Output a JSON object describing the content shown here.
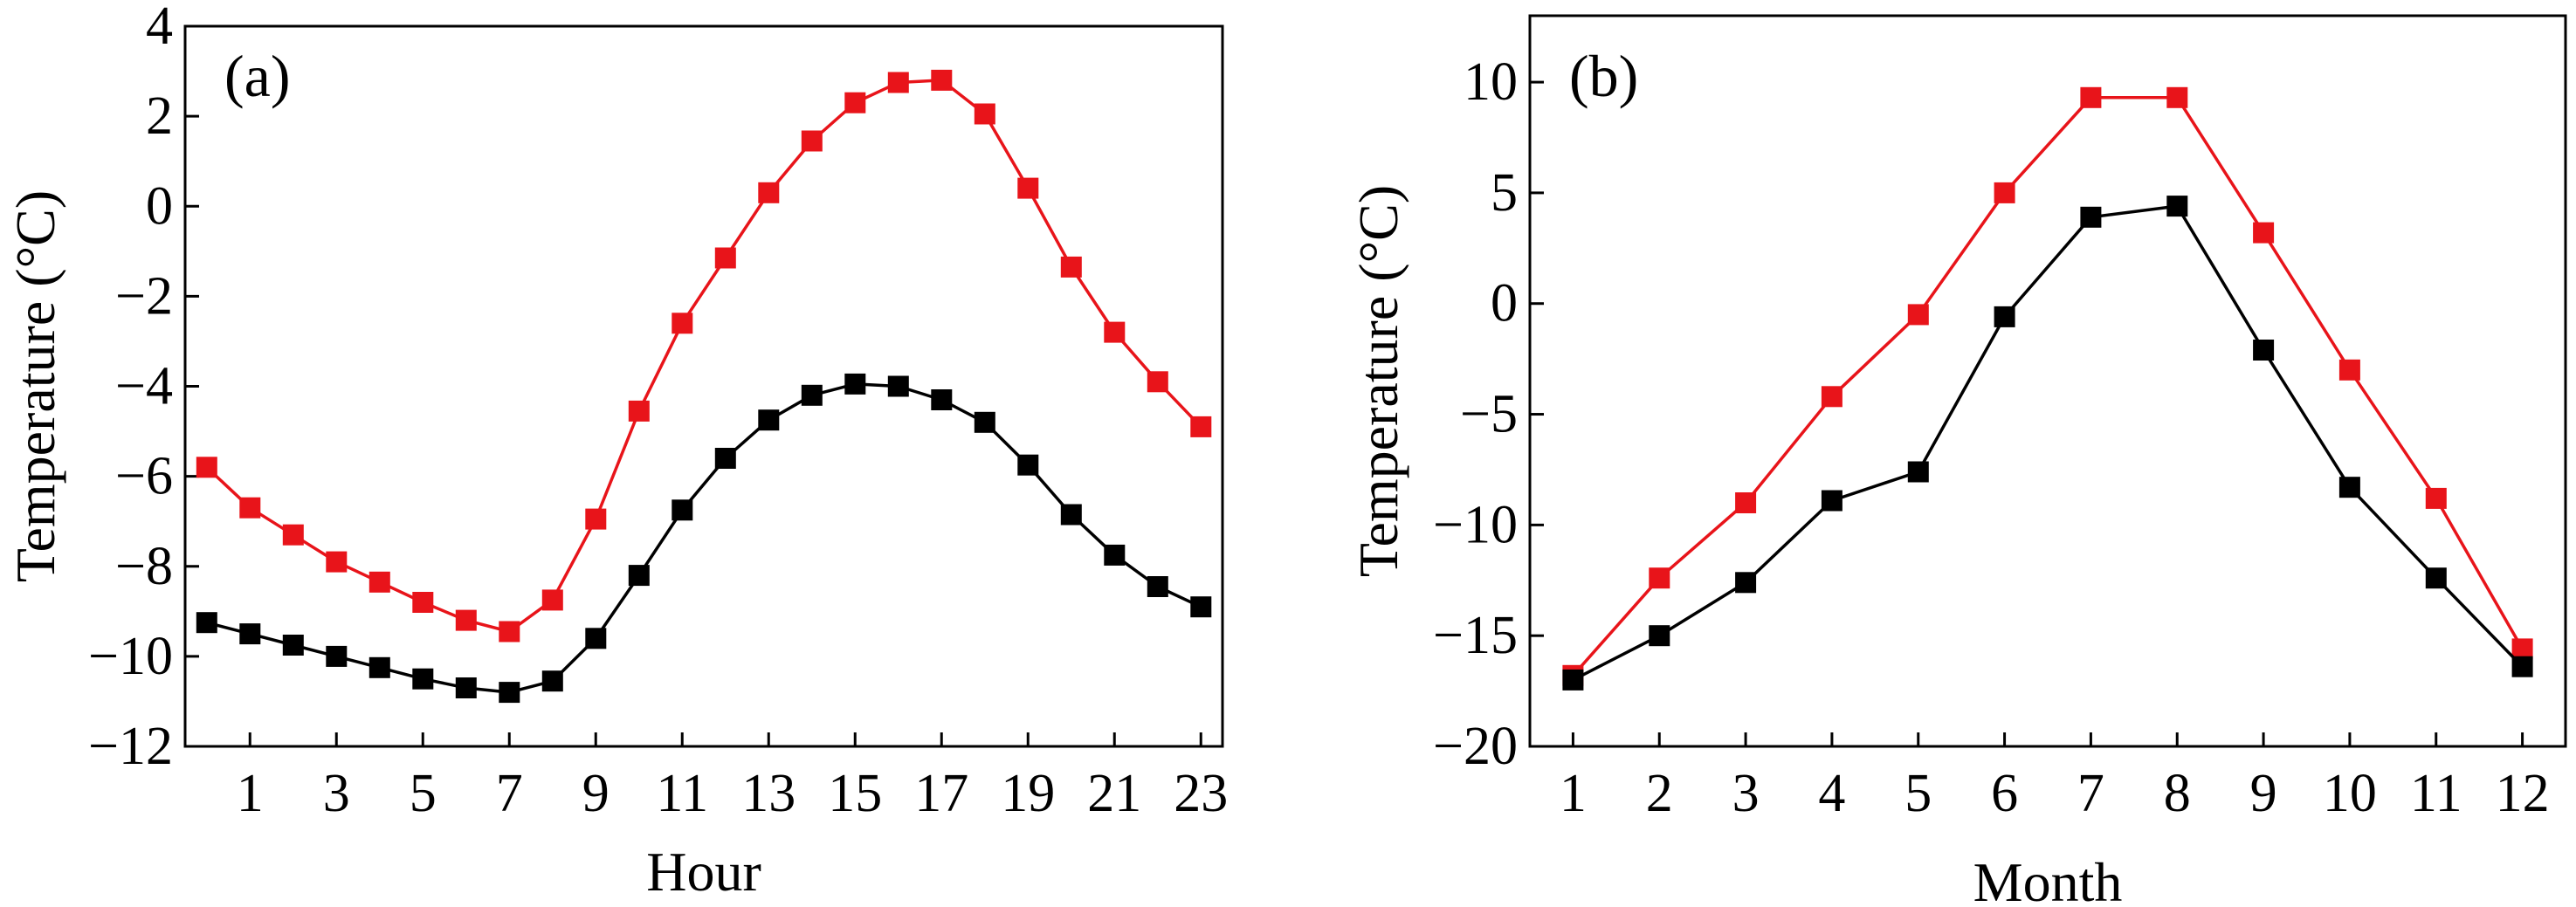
{
  "chart_data": [
    {
      "type": "line",
      "panel_label": "(a)",
      "xlabel": "Hour",
      "ylabel": "Temperature (°C)",
      "x": [
        0,
        1,
        2,
        3,
        4,
        5,
        6,
        7,
        8,
        9,
        10,
        11,
        12,
        13,
        14,
        15,
        16,
        17,
        18,
        19,
        20,
        21,
        22,
        23
      ],
      "xlim": [
        -0.5,
        23.5
      ],
      "ylim": [
        -12,
        4
      ],
      "xticks": [
        1,
        3,
        5,
        7,
        9,
        11,
        13,
        15,
        17,
        19,
        21,
        23
      ],
      "xtick_labels": [
        "1",
        "3",
        "5",
        "7",
        "9",
        "11",
        "13",
        "15",
        "17",
        "19",
        "21",
        "23"
      ],
      "yticks": [
        -12,
        -10,
        -8,
        -6,
        -4,
        -2,
        0,
        2,
        4
      ],
      "ytick_labels": [
        "−12",
        "−10",
        "−8",
        "−6",
        "−4",
        "−2",
        "0",
        "2",
        "4"
      ],
      "grid": false,
      "series": [
        {
          "name": "red",
          "color": "#e8141a",
          "marker": "square",
          "values": [
            -5.8,
            -6.7,
            -7.3,
            -7.9,
            -8.35,
            -8.8,
            -9.2,
            -9.45,
            -8.75,
            -6.95,
            -4.55,
            -2.6,
            -1.15,
            0.3,
            1.45,
            2.3,
            2.75,
            2.8,
            2.05,
            0.4,
            -1.35,
            -2.8,
            -3.9,
            -4.9
          ]
        },
        {
          "name": "black",
          "color": "#000000",
          "marker": "square",
          "values": [
            -9.25,
            -9.5,
            -9.75,
            -10.0,
            -10.25,
            -10.5,
            -10.7,
            -10.8,
            -10.55,
            -9.6,
            -8.2,
            -6.75,
            -5.6,
            -4.75,
            -4.2,
            -3.95,
            -4.0,
            -4.3,
            -4.8,
            -5.75,
            -6.85,
            -7.75,
            -8.45,
            -8.9
          ]
        }
      ]
    },
    {
      "type": "line",
      "panel_label": "(b)",
      "xlabel": "Month",
      "ylabel": "Temperature (°C)",
      "x": [
        1,
        2,
        3,
        4,
        5,
        6,
        7,
        8,
        9,
        10,
        11,
        12
      ],
      "xlim": [
        0.5,
        12.5
      ],
      "ylim": [
        -20,
        13
      ],
      "xticks": [
        1,
        2,
        3,
        4,
        5,
        6,
        7,
        8,
        9,
        10,
        11,
        12
      ],
      "xtick_labels": [
        "1",
        "2",
        "3",
        "4",
        "5",
        "6",
        "7",
        "8",
        "9",
        "10",
        "11",
        "12"
      ],
      "yticks": [
        -20,
        -15,
        -10,
        -5,
        0,
        5,
        10
      ],
      "ytick_labels": [
        "−20",
        "−15",
        "−10",
        "−5",
        "0",
        "5",
        "10"
      ],
      "grid": false,
      "series": [
        {
          "name": "red",
          "color": "#e8141a",
          "marker": "square",
          "values": [
            -16.8,
            -12.4,
            -9.0,
            -4.2,
            -0.5,
            5.0,
            9.3,
            9.3,
            3.2,
            -3.0,
            -8.8,
            -15.6
          ]
        },
        {
          "name": "black",
          "color": "#000000",
          "marker": "square",
          "values": [
            -17.0,
            -15.0,
            -12.6,
            -8.9,
            -7.6,
            -0.6,
            3.9,
            4.4,
            -2.1,
            -8.3,
            -12.4,
            -16.4
          ]
        }
      ]
    }
  ]
}
